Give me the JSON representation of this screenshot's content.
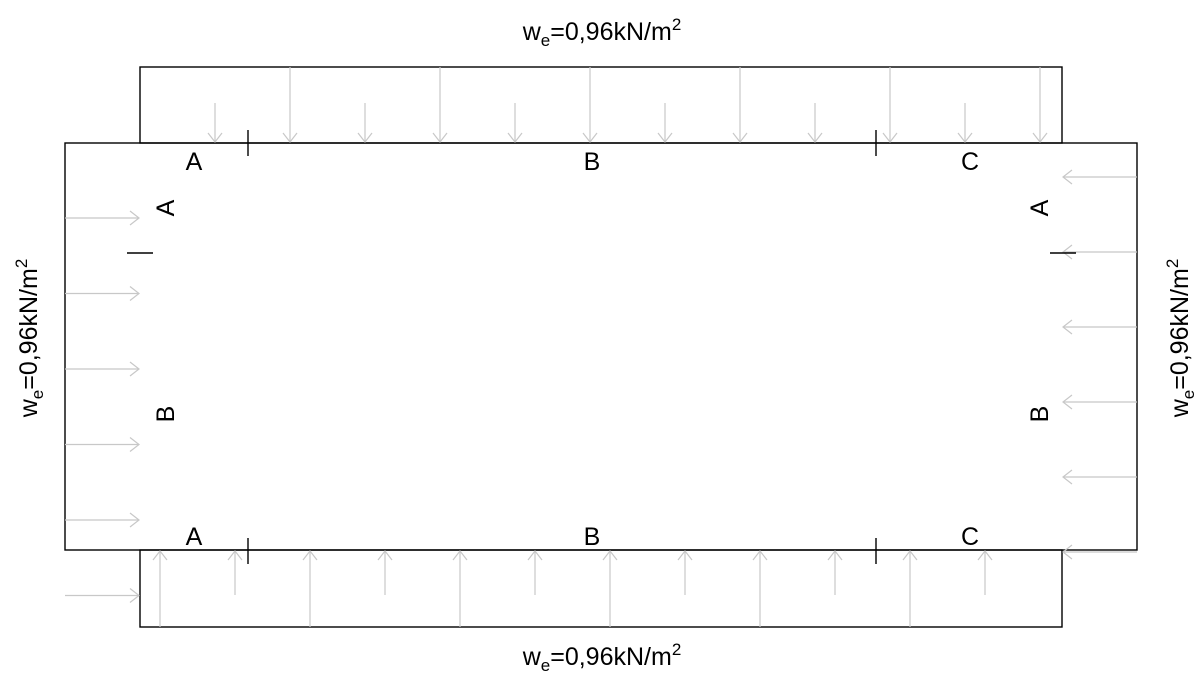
{
  "loads": {
    "top": {
      "symbol": "w",
      "subscript": "e",
      "value": "=0,96kN/m",
      "exponent": "2"
    },
    "bottom": {
      "symbol": "w",
      "subscript": "e",
      "value": "=0,96kN/m",
      "exponent": "2"
    },
    "left": {
      "symbol": "w",
      "subscript": "e",
      "value": "=0,96kN/m",
      "exponent": "2"
    },
    "right": {
      "symbol": "w",
      "subscript": "e",
      "value": "=0,96kN/m",
      "exponent": "2"
    }
  },
  "zones": {
    "top": [
      "A",
      "B",
      "C"
    ],
    "bottom": [
      "A",
      "B",
      "C"
    ],
    "left": [
      "A",
      "B"
    ],
    "right": [
      "A",
      "B"
    ]
  },
  "colors": {
    "outline": "#000000",
    "arrows": "#c8c8c8",
    "text": "#000000"
  }
}
